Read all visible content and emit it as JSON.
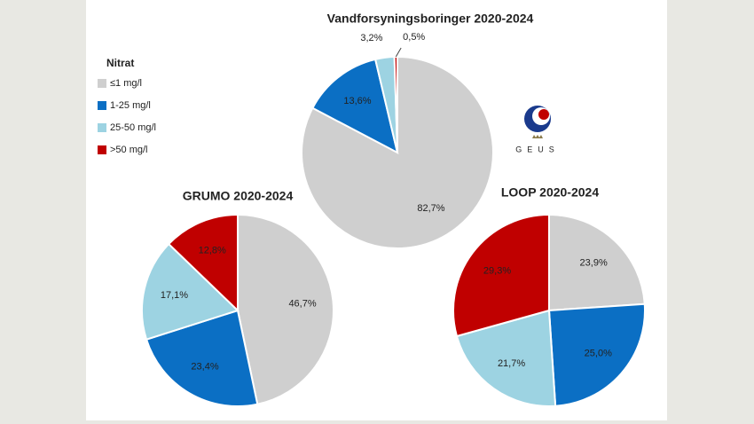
{
  "chart_data": [
    {
      "type": "pie",
      "title": "Vandforsyningsboringer 2020-2024",
      "values": [
        82.7,
        13.6,
        3.2,
        0.5
      ],
      "value_labels": [
        "82,7%",
        "13,6%",
        "3,2%",
        "0,5%"
      ]
    },
    {
      "type": "pie",
      "title": "GRUMO 2020-2024",
      "values": [
        46.7,
        23.4,
        17.1,
        12.8
      ],
      "value_labels": [
        "46,7%",
        "23,4%",
        "17,1%",
        "12,8%"
      ]
    },
    {
      "type": "pie",
      "title": "LOOP 2020-2024",
      "values": [
        23.9,
        25.0,
        21.7,
        29.3
      ],
      "value_labels": [
        "23,9%",
        "25,0%",
        "21,7%",
        "29,3%"
      ]
    }
  ],
  "legend": {
    "title": "Nitrat",
    "labels": [
      "≤1 mg/l",
      "1-25 mg/l",
      "25-50 mg/l",
      ">50 mg/l"
    ],
    "colors": [
      "#cfcfcf",
      "#0b6fc4",
      "#9dd3e2",
      "#c00000"
    ]
  },
  "logo": {
    "text": "GEUS"
  }
}
